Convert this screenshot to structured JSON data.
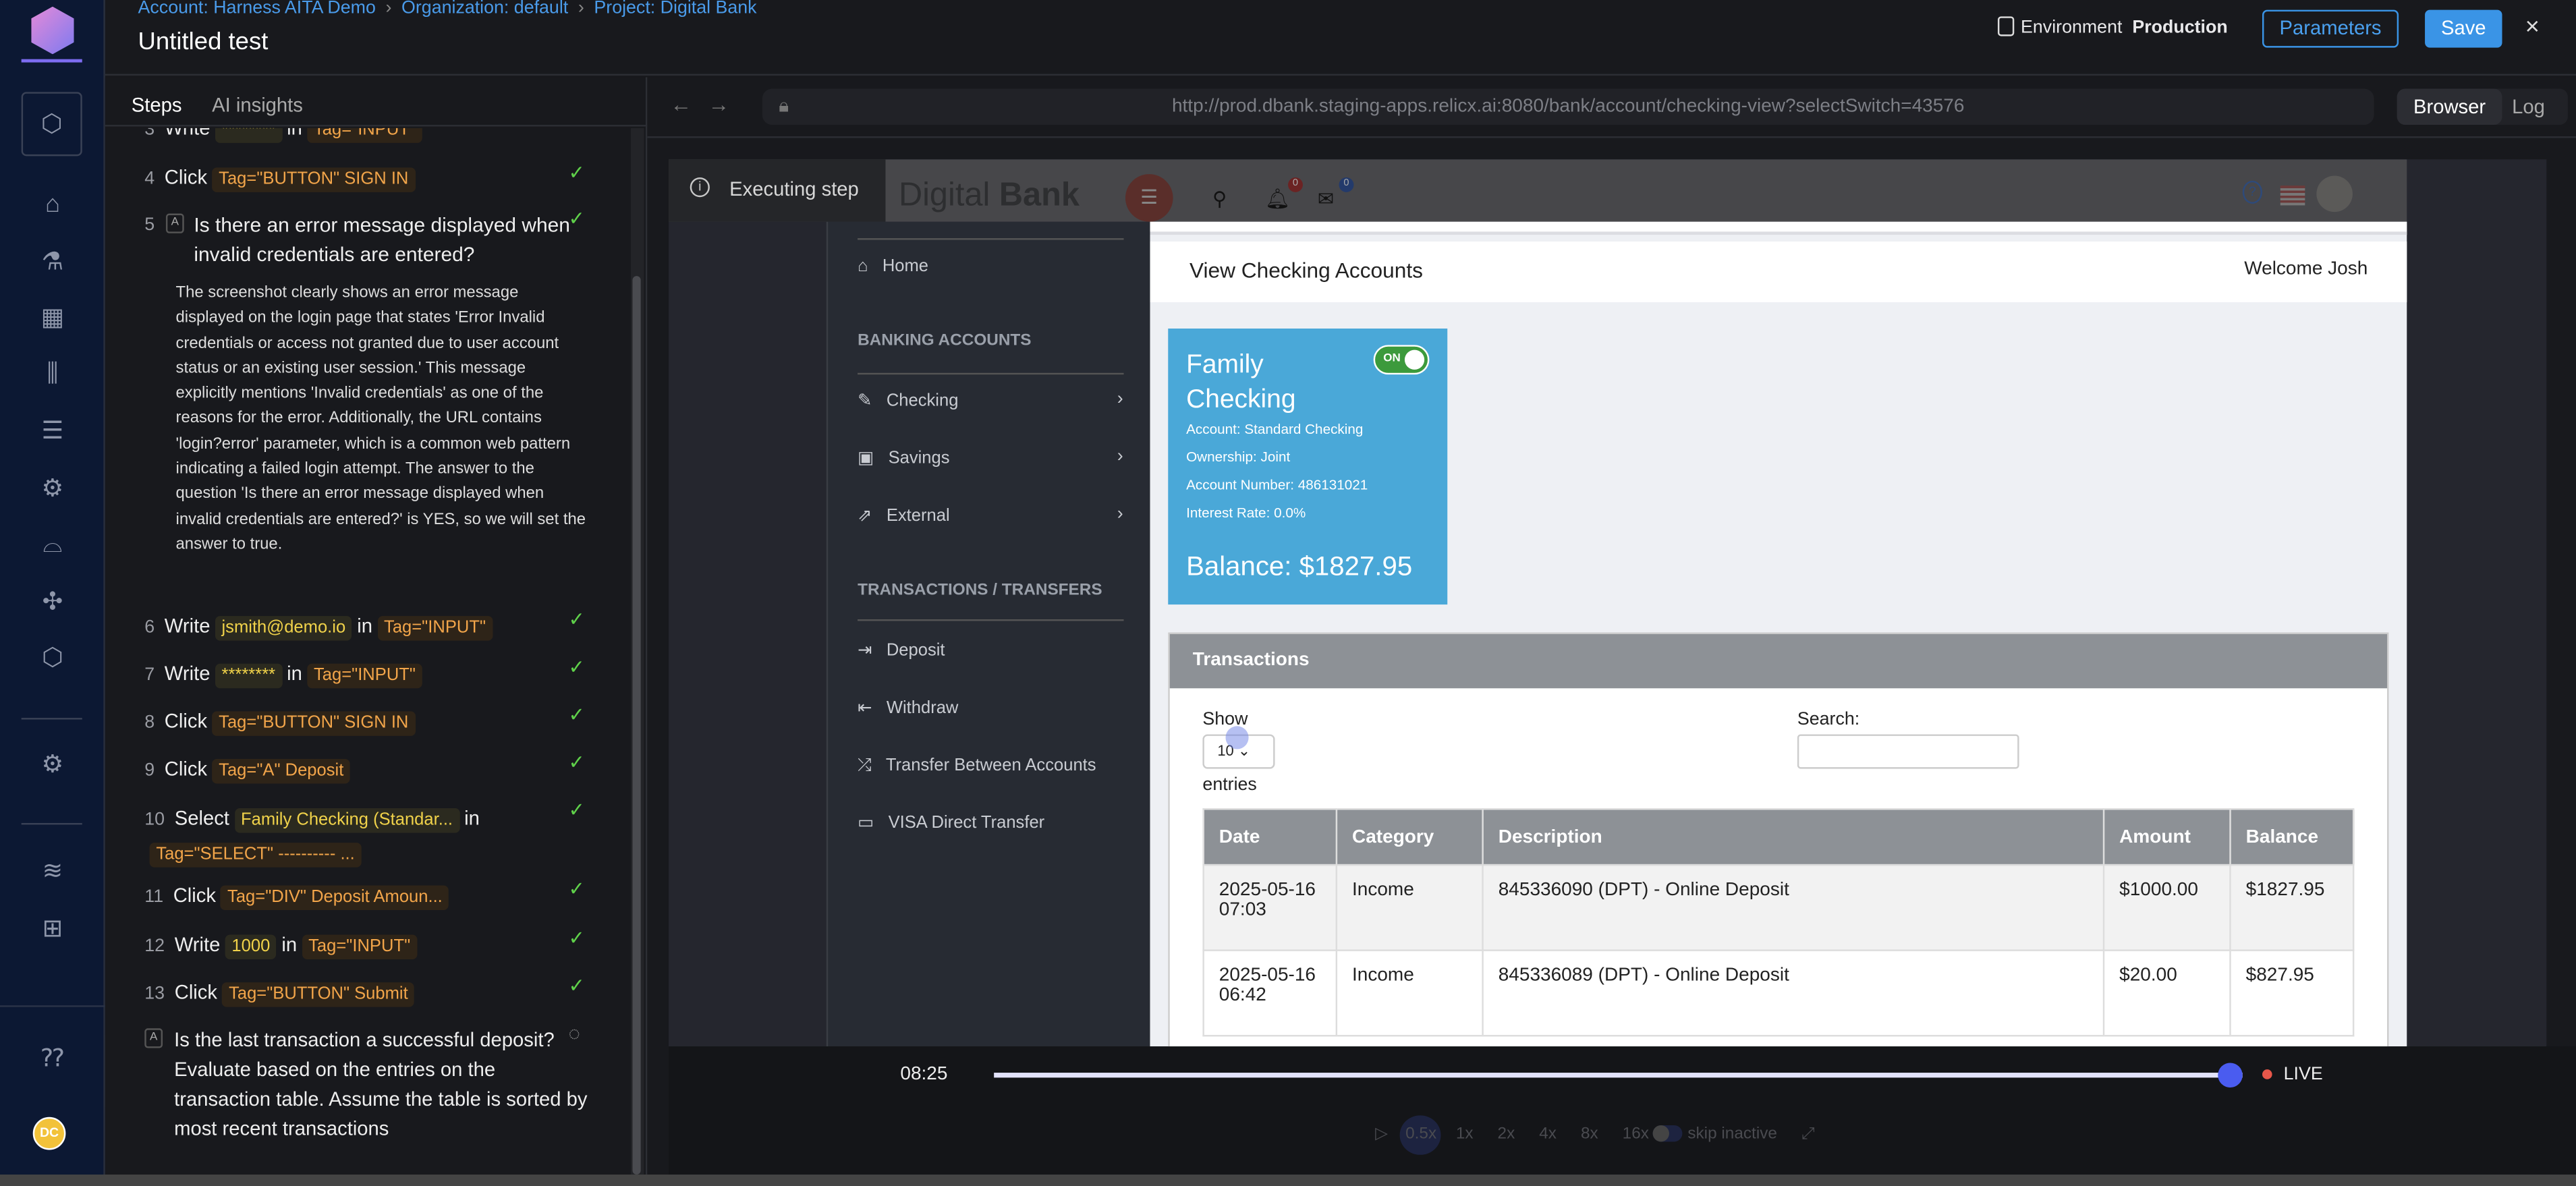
{
  "rail": {
    "logo": "harness-logo",
    "avatar": "DC",
    "icons": [
      "box-icon",
      "home-icon",
      "flask-icon",
      "grid-icon",
      "bars-icon",
      "list-icon",
      "gear-icon",
      "rocket-icon",
      "puzzle-icon",
      "link-icon",
      "settings-icon",
      "layers-gear-icon",
      "network-gear-icon",
      "help-chat-icon"
    ]
  },
  "header": {
    "breadcrumb": [
      "Account: Harness AITA Demo",
      "Organization: default",
      "Project: Digital Bank"
    ],
    "title": "Untitled test",
    "env_label": "Environment",
    "env_value": "Production",
    "parameters": "Parameters",
    "save": "Save",
    "close": "×"
  },
  "left": {
    "tabs": [
      "Steps",
      "AI insights"
    ],
    "steps": [
      {
        "n": "3",
        "action": "Write",
        "value": "********",
        "mid": "in",
        "tag": "Tag=\"INPUT\"",
        "status": "done"
      },
      {
        "n": "4",
        "action": "Click",
        "tag": "Tag=\"BUTTON\" SIGN IN",
        "status": "done"
      },
      {
        "n": "5",
        "ai": "A",
        "question": "Is there an error message displayed when invalid credentials are entered?",
        "answer": "The screenshot clearly shows an error message displayed on the login page that states 'Error Invalid credentials or access not granted due to user account status or an existing user session.' This message explicitly mentions 'Invalid credentials' as one of the reasons for the error. Additionally, the URL contains 'login?error' parameter, which is a common web pattern indicating a failed login attempt. The answer to the question 'Is there an error message displayed when invalid credentials are entered?' is YES, so we will set the answer to true.",
        "status": "done"
      },
      {
        "n": "6",
        "action": "Write",
        "value": "jsmith@demo.io",
        "mid": "in",
        "tag": "Tag=\"INPUT\"",
        "status": "done"
      },
      {
        "n": "7",
        "action": "Write",
        "value": "********",
        "mid": "in",
        "tag": "Tag=\"INPUT\"",
        "status": "done"
      },
      {
        "n": "8",
        "action": "Click",
        "tag": "Tag=\"BUTTON\" SIGN IN",
        "status": "done"
      },
      {
        "n": "9",
        "action": "Click",
        "tag": "Tag=\"A\" Deposit",
        "status": "done"
      },
      {
        "n": "10",
        "action": "Select",
        "value": "Family Checking (Standar...",
        "mid": "in",
        "tag": "Tag=\"SELECT\" ---------- ...",
        "status": "done"
      },
      {
        "n": "11",
        "action": "Click",
        "tag": "Tag=\"DIV\" Deposit Amoun...",
        "status": "done"
      },
      {
        "n": "12",
        "action": "Write",
        "value": "1000",
        "mid": "in",
        "tag": "Tag=\"INPUT\"",
        "status": "done"
      },
      {
        "n": "13",
        "action": "Click",
        "tag": "Tag=\"BUTTON\" Submit",
        "status": "done"
      },
      {
        "ai": "A",
        "question": "Is the last transaction a successful deposit? Evaluate based on the entries on the transaction table. Assume the table is sorted by most recent transactions",
        "status": "running"
      }
    ]
  },
  "browser": {
    "url": "http://prod.dbank.staging-apps.relicx.ai:8080/bank/account/checking-view?selectSwitch=43576",
    "tabs": [
      "Browser",
      "Log"
    ],
    "executing": "Executing step"
  },
  "bank": {
    "brand_light": "Digital",
    "brand_bold": "Bank",
    "notif_count": "0",
    "mail_count": "0",
    "nav": {
      "home": "Home",
      "sec1": "BANKING ACCOUNTS",
      "checking": "Checking",
      "savings": "Savings",
      "external": "External",
      "sec2": "TRANSACTIONS / TRANSFERS",
      "deposit": "Deposit",
      "withdraw": "Withdraw",
      "transfer": "Transfer Between Accounts",
      "visa": "VISA Direct Transfer"
    },
    "page_title": "View Checking Accounts",
    "welcome": "Welcome Josh",
    "card": {
      "name": "Family Checking",
      "toggle": "ON",
      "account": "Account: Standard Checking",
      "ownership": "Ownership: Joint",
      "number": "Account Number: 486131021",
      "rate": "Interest Rate: 0.0%",
      "balance": "Balance: $1827.95"
    },
    "transactions": {
      "title": "Transactions",
      "show": "Show",
      "entries_value": "10",
      "entries": "entries",
      "search": "Search:",
      "columns": [
        "Date",
        "Category",
        "Description",
        "Amount",
        "Balance"
      ],
      "rows": [
        [
          "2025-05-16 07:03",
          "Income",
          "845336090 (DPT) - Online Deposit",
          "$1000.00",
          "$1827.95"
        ],
        [
          "2025-05-16 06:42",
          "Income",
          "845336089 (DPT) - Online Deposit",
          "$20.00",
          "$827.95"
        ]
      ]
    }
  },
  "player": {
    "time": "08:25",
    "progress": 0.99,
    "live": "LIVE",
    "speeds": [
      "0.5x",
      "1x",
      "2x",
      "4x",
      "8x",
      "16x"
    ],
    "active_speed": "0.5x",
    "skip": "skip inactive"
  }
}
